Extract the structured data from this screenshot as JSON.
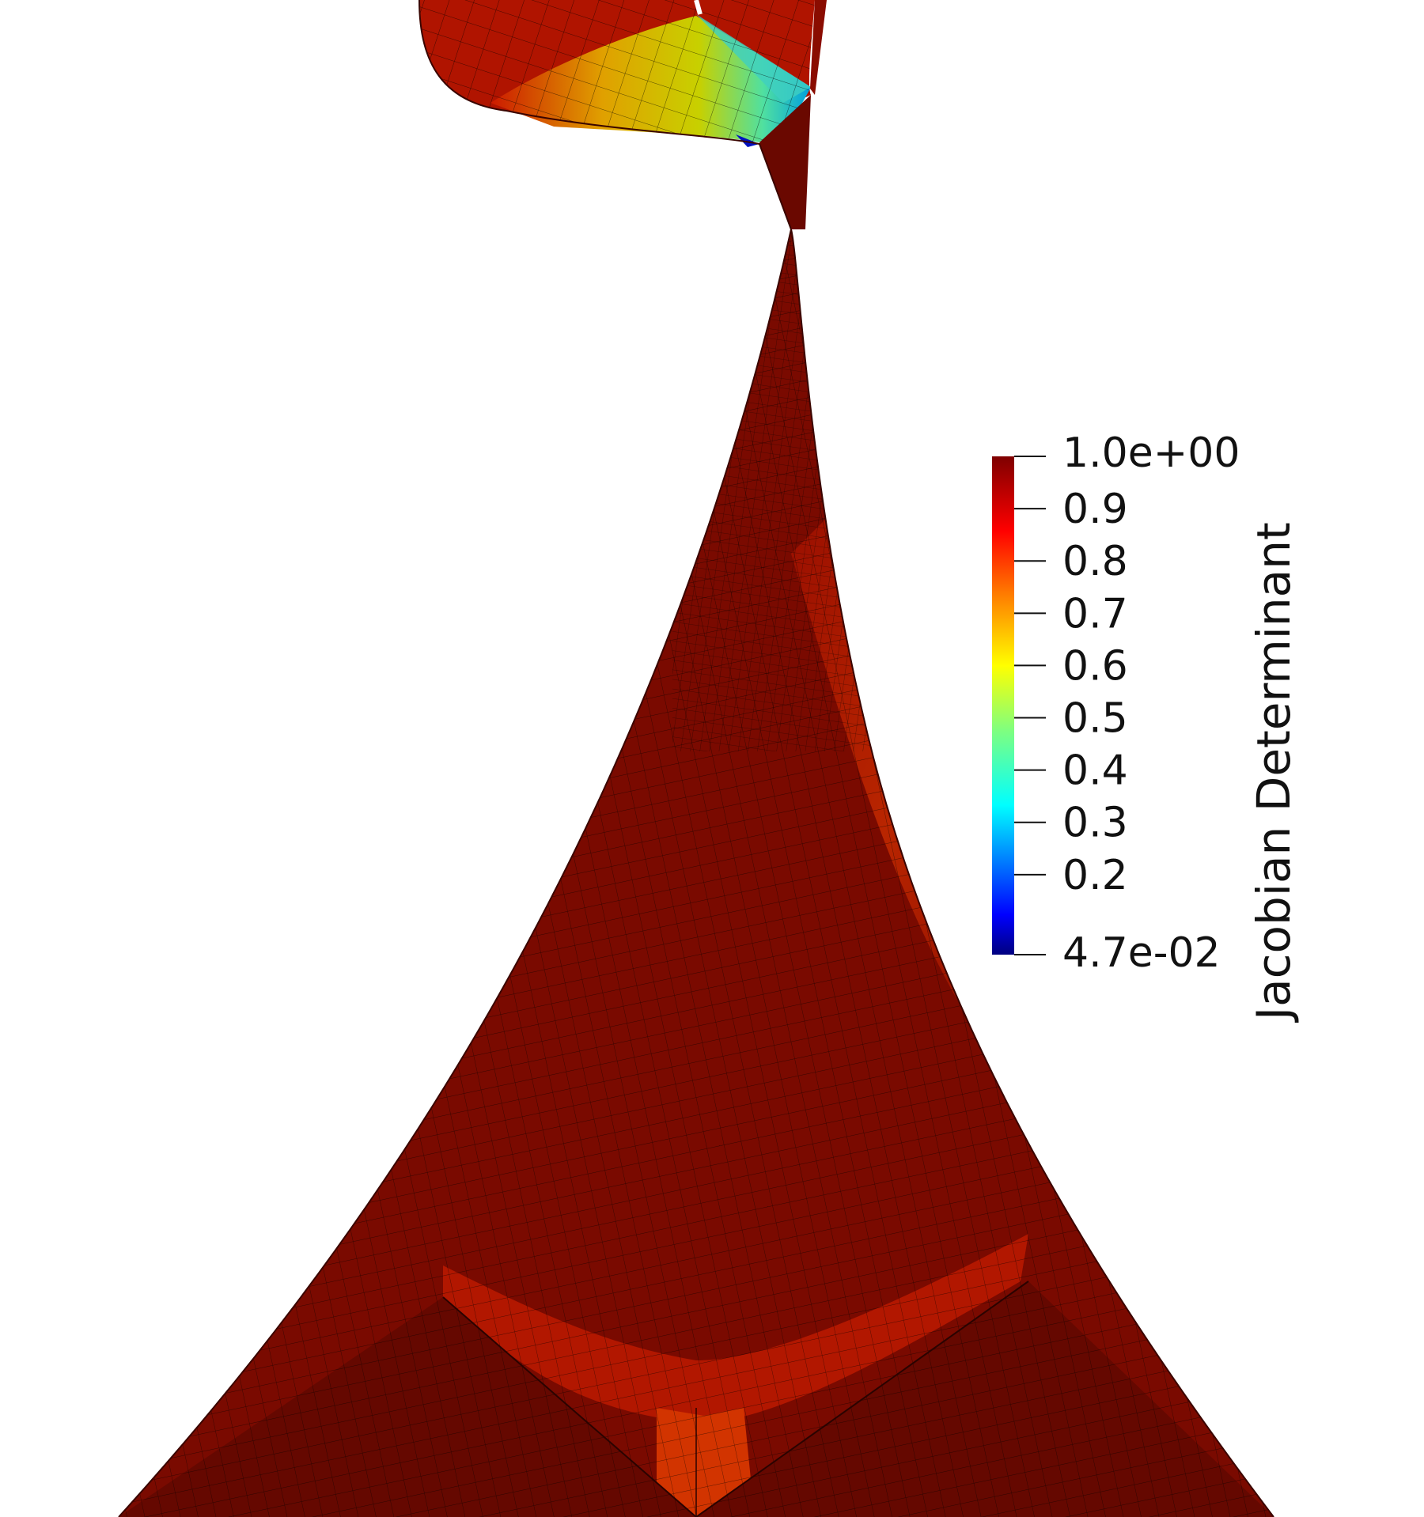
{
  "colorbar": {
    "title": "Jacobian Determinant",
    "range": [
      0.047,
      1.0
    ],
    "max_label": "1.0e+00",
    "min_label": "4.7e-02",
    "ticks": [
      {
        "value": 0.9,
        "label": "0.9"
      },
      {
        "value": 0.8,
        "label": "0.8"
      },
      {
        "value": 0.7,
        "label": "0.7"
      },
      {
        "value": 0.6,
        "label": "0.6"
      },
      {
        "value": 0.5,
        "label": "0.5"
      },
      {
        "value": 0.4,
        "label": "0.4"
      },
      {
        "value": 0.3,
        "label": "0.3"
      },
      {
        "value": 0.2,
        "label": "0.2"
      }
    ],
    "colormap": [
      "#00007f",
      "#0000ff",
      "#007fff",
      "#00ffff",
      "#7fff7f",
      "#ffff00",
      "#ff7f00",
      "#ff0000",
      "#7f0000"
    ]
  },
  "mesh": {
    "dominant_color": "#7a0a00",
    "edge_color": "#000000"
  }
}
